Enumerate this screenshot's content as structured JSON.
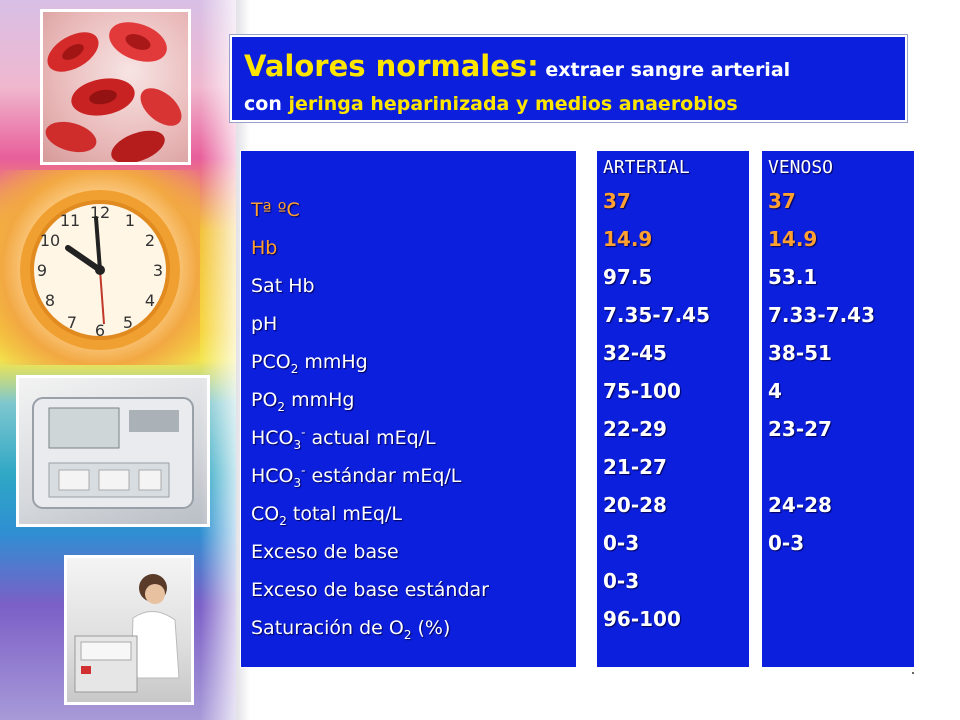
{
  "title": {
    "main": "Valores normales:",
    "rest": " extraer sangre arterial",
    "line2_prefix": "con ",
    "line2_highlight": "jeringa heparinizada y medios anaerobios"
  },
  "parameters": [
    {
      "text": "Tª ºC"
    },
    {
      "text": "Hb"
    },
    {
      "text": "Sat Hb"
    },
    {
      "text": "pH"
    },
    {
      "base": "PCO",
      "sub": "2",
      "suffix": " mmHg"
    },
    {
      "base": "PO",
      "sub": "2",
      "suffix": " mmHg"
    },
    {
      "base": "HCO",
      "sub": "3",
      "sup": "-",
      "suffix": " actual mEq/L"
    },
    {
      "base": "HCO",
      "sub": "3",
      "sup": "-",
      "suffix": " estándar mEq/L"
    },
    {
      "base": "CO",
      "sub": "2",
      "suffix": " total mEq/L"
    },
    {
      "text": "Exceso de base"
    },
    {
      "text": "Exceso de base estándar"
    },
    {
      "base": "Saturación de O",
      "sub": "2",
      "suffix": " (%)"
    }
  ],
  "arterial": {
    "header": "ARTERIAL",
    "values": [
      "37",
      "14.9",
      "97.5",
      "7.35-7.45",
      "32-45",
      "75-100",
      "22-29",
      "21-27",
      "20-28",
      "0-3",
      "0-3",
      "96-100"
    ]
  },
  "venoso": {
    "header": "VENOSO",
    "values": [
      "37",
      "14.9",
      "53.1",
      "7.33-7.43",
      "38-51",
      "4",
      "23-27",
      "",
      "24-28",
      "0-3",
      "",
      ""
    ]
  },
  "colors": {
    "panel_blue": "#0b1fdc",
    "highlight_yellow": "#ffe600",
    "highlight_orange": "#ffa030"
  },
  "decor": [
    "red-blood-cells-photo",
    "clock-photo",
    "blood-gas-analyzer-photo",
    "lab-technician-photo"
  ]
}
